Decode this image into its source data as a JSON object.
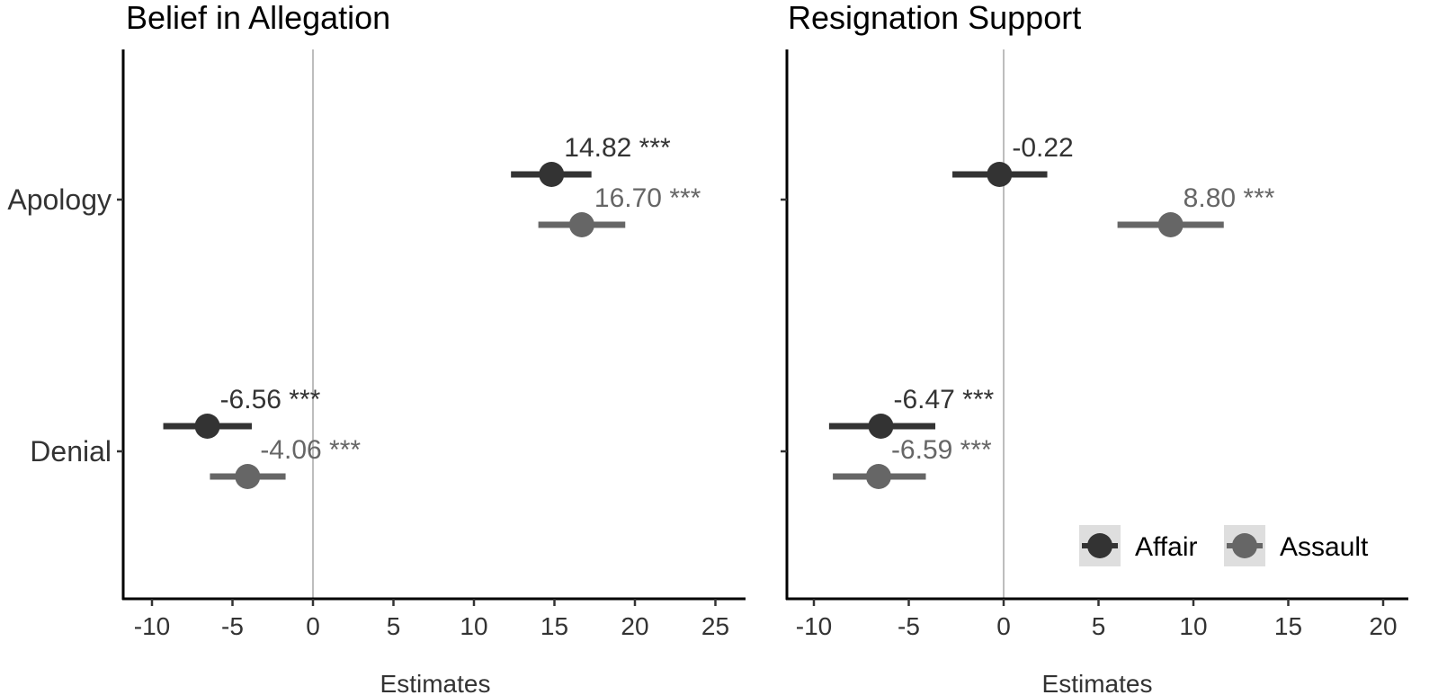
{
  "chart_data": [
    {
      "type": "dot-and-whisker",
      "title": "Belief in Allegation",
      "xlabel": "Estimates",
      "categories": [
        "Apology",
        "Denial"
      ],
      "xlim": [
        -11,
        27
      ],
      "x_ticks": [
        -10,
        -5,
        0,
        5,
        10,
        15,
        20,
        25
      ],
      "x_tick_labels": [
        "-10",
        "-5",
        "0",
        "5",
        "10",
        "15",
        "20",
        "25"
      ],
      "reference_line_x": 0,
      "series": [
        {
          "name": "Affair",
          "color": "#333333",
          "points": [
            {
              "category": "Apology",
              "estimate": 14.82,
              "ci": [
                12.3,
                17.3
              ],
              "label": "14.82 ***"
            },
            {
              "category": "Denial",
              "estimate": -6.56,
              "ci": [
                -9.3,
                -3.8
              ],
              "label": "-6.56 ***"
            }
          ]
        },
        {
          "name": "Assault",
          "color": "#666666",
          "points": [
            {
              "category": "Apology",
              "estimate": 16.7,
              "ci": [
                14.0,
                19.4
              ],
              "label": "16.70 ***"
            },
            {
              "category": "Denial",
              "estimate": -4.06,
              "ci": [
                -6.4,
                -1.7
              ],
              "label": "-4.06 ***"
            }
          ]
        }
      ]
    },
    {
      "type": "dot-and-whisker",
      "title": "Resignation Support",
      "xlabel": "Estimates",
      "categories": [
        "Apology",
        "Denial"
      ],
      "xlim": [
        -11,
        21.5
      ],
      "x_ticks": [
        -10,
        -5,
        0,
        5,
        10,
        15,
        20
      ],
      "x_tick_labels": [
        "-10",
        "-5",
        "0",
        "5",
        "10",
        "15",
        "20"
      ],
      "reference_line_x": 0,
      "series": [
        {
          "name": "Affair",
          "color": "#333333",
          "points": [
            {
              "category": "Apology",
              "estimate": -0.22,
              "ci": [
                -2.7,
                2.3
              ],
              "label": "-0.22"
            },
            {
              "category": "Denial",
              "estimate": -6.47,
              "ci": [
                -9.2,
                -3.6
              ],
              "label": "-6.47 ***"
            }
          ]
        },
        {
          "name": "Assault",
          "color": "#666666",
          "points": [
            {
              "category": "Apology",
              "estimate": 8.8,
              "ci": [
                6.0,
                11.6
              ],
              "label": "8.80 ***"
            },
            {
              "category": "Denial",
              "estimate": -6.59,
              "ci": [
                -9.0,
                -4.1
              ],
              "label": "-6.59 ***"
            }
          ]
        }
      ],
      "legend": {
        "position": "bottom-right",
        "items": [
          {
            "label": "Affair",
            "color": "#333333"
          },
          {
            "label": "Assault",
            "color": "#666666"
          }
        ]
      }
    }
  ]
}
